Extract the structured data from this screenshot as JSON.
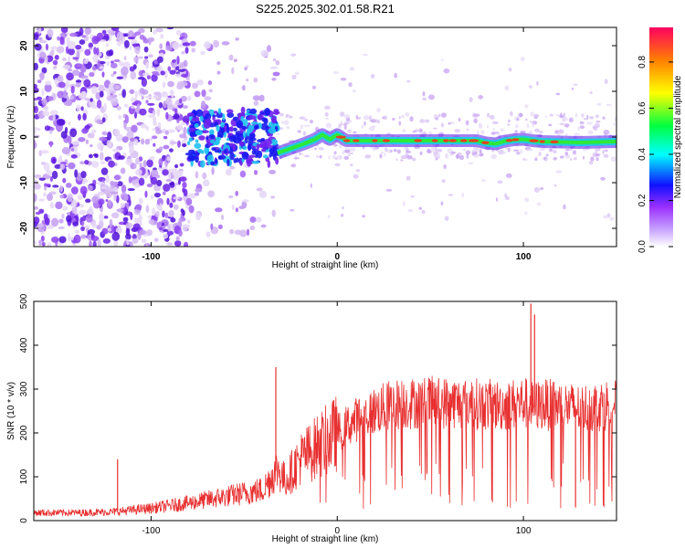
{
  "figure": {
    "title": "S225.2025.302.01.58.R21",
    "colors": {
      "signal_line": "#e83030",
      "scatter_low": "#d9c6f2",
      "scatter_mid": "#7b2cf0",
      "ridge_green": "#2ee83a",
      "ridge_cyan": "#21c8e8",
      "ridge_red": "#e84020"
    }
  },
  "chart_data": [
    {
      "type": "heatmap",
      "title": "",
      "xlabel": "Height of straight line (km)",
      "ylabel": "Frequency (Hz)",
      "xlim": [
        -163,
        150
      ],
      "ylim": [
        -24,
        24
      ],
      "xticks": [
        -100,
        0,
        100
      ],
      "yticks": [
        -20,
        -10,
        0,
        10,
        20
      ],
      "colorbar": {
        "label": "Normalized spectral amplitude",
        "range": [
          0,
          0.95
        ],
        "ticks": [
          0.0,
          0.2,
          0.4,
          0.6,
          0.8
        ],
        "tick_labels": [
          "0.0",
          "0.2",
          "0.4",
          "0.6",
          "0.8"
        ],
        "colormap": [
          "#ffffff",
          "#9b30ff",
          "#1010ff",
          "#00ffff",
          "#00ff40",
          "#ffff00",
          "#ff8000",
          "#ff0060"
        ]
      },
      "ridge_line": {
        "x": [
          -32,
          -25,
          -18,
          -12,
          -8,
          -4,
          0,
          5,
          20,
          50,
          75,
          80,
          85,
          90,
          95,
          100,
          105,
          110,
          130,
          150
        ],
        "y": [
          -3.5,
          -2.5,
          -1.5,
          -0.5,
          0.5,
          -0.5,
          0.5,
          -0.8,
          -0.8,
          -0.8,
          -0.8,
          -1.3,
          -1.5,
          -0.9,
          -0.6,
          -0.5,
          -0.8,
          -1.0,
          -1.2,
          -1.0
        ]
      },
      "noise_region_x": [
        -163,
        -80
      ],
      "transition_region_x": [
        -80,
        -32
      ]
    },
    {
      "type": "line",
      "title": "",
      "xlabel": "Height of straight line (km)",
      "ylabel": "SNR (10 * v/v)",
      "xlim": [
        -163,
        150
      ],
      "ylim": [
        0,
        500
      ],
      "xticks": [
        -100,
        0,
        100
      ],
      "yticks": [
        0,
        100,
        200,
        300,
        400,
        500
      ],
      "envelope": {
        "x": [
          -163,
          -140,
          -120,
          -100,
          -80,
          -60,
          -40,
          -32,
          -28,
          -20,
          -10,
          0,
          10,
          20,
          30,
          50,
          70,
          90,
          100,
          105,
          110,
          120,
          130,
          150
        ],
        "y_mean": [
          18,
          18,
          20,
          28,
          40,
          55,
          70,
          120,
          90,
          140,
          170,
          200,
          230,
          250,
          265,
          270,
          268,
          262,
          270,
          260,
          265,
          262,
          255,
          268
        ]
      },
      "spikes": [
        {
          "x": -33,
          "y": 350
        },
        {
          "x": -118,
          "y": 140
        },
        {
          "x": 104,
          "y": 495
        },
        {
          "x": 106,
          "y": 470
        },
        {
          "x": 128,
          "y": 30
        }
      ]
    }
  ]
}
